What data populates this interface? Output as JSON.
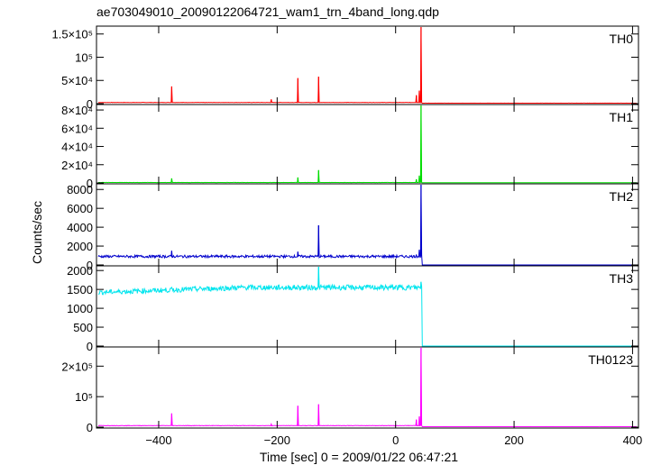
{
  "chart_data": {
    "type": "line",
    "title": "ae703049010_20090122064721_wam1_trn_4band_long.qdp",
    "xlabel": "Time [sec] 0 = 2009/01/22 06:47:21",
    "ylabel": "Counts/sec",
    "xlim": [
      -505,
      410
    ],
    "x_ticks": [
      {
        "v": -400,
        "label": "−400"
      },
      {
        "v": -200,
        "label": "−200"
      },
      {
        "v": 0,
        "label": "0"
      },
      {
        "v": 200,
        "label": "200"
      },
      {
        "v": 400,
        "label": "400"
      }
    ],
    "panels": [
      {
        "name": "TH0",
        "color": "#ff0000",
        "ylim": [
          0,
          165000
        ],
        "yticks": [
          {
            "v": 0,
            "label": "0"
          },
          {
            "v": 50000,
            "label": "5×10⁴"
          },
          {
            "v": 100000,
            "label": "10⁵"
          },
          {
            "v": 150000,
            "label": "1.5×10⁵"
          }
        ],
        "baseline_pre": 2500,
        "baseline_post": 1000,
        "spikes": [
          [
            -378,
            37000
          ],
          [
            -210,
            9000
          ],
          [
            -165,
            55000
          ],
          [
            -130,
            58000
          ],
          [
            35,
            18000
          ],
          [
            40,
            28000
          ],
          [
            43,
            165000
          ]
        ]
      },
      {
        "name": "TH1",
        "color": "#00dd00",
        "ylim": [
          0,
          85000
        ],
        "yticks": [
          {
            "v": 0,
            "label": "0"
          },
          {
            "v": 20000,
            "label": "2×10⁴"
          },
          {
            "v": 40000,
            "label": "4×10⁴"
          },
          {
            "v": 60000,
            "label": "6×10⁴"
          },
          {
            "v": 80000,
            "label": "8×10⁴"
          }
        ],
        "baseline_pre": 500,
        "baseline_post": 300,
        "spikes": [
          [
            -378,
            5000
          ],
          [
            -165,
            6000
          ],
          [
            -130,
            14000
          ],
          [
            35,
            4000
          ],
          [
            40,
            8000
          ],
          [
            43,
            85000
          ]
        ]
      },
      {
        "name": "TH2",
        "color": "#0000cc",
        "ylim": [
          0,
          8500
        ],
        "yticks": [
          {
            "v": 0,
            "label": "0"
          },
          {
            "v": 2000,
            "label": "2000"
          },
          {
            "v": 4000,
            "label": "4000"
          },
          {
            "v": 6000,
            "label": "6000"
          },
          {
            "v": 8000,
            "label": "8000"
          }
        ],
        "baseline_pre": 900,
        "baseline_post": 0,
        "spikes": [
          [
            -378,
            1500
          ],
          [
            -165,
            1400
          ],
          [
            -130,
            4200
          ],
          [
            35,
            1100
          ],
          [
            40,
            1600
          ],
          [
            43,
            8500
          ]
        ]
      },
      {
        "name": "TH3",
        "color": "#00e5ee",
        "ylim": [
          0,
          2100
        ],
        "yticks": [
          {
            "v": 0,
            "label": "0"
          },
          {
            "v": 500,
            "label": "500"
          },
          {
            "v": 1000,
            "label": "1000"
          },
          {
            "v": 1500,
            "label": "1500"
          },
          {
            "v": 2000,
            "label": "2000"
          }
        ],
        "baseline_pre": 1550,
        "baseline_post": 0,
        "spikes": [
          [
            -130,
            2100
          ],
          [
            43,
            1700
          ]
        ]
      },
      {
        "name": "TH0123",
        "color": "#ff00ff",
        "ylim": [
          0,
          260000
        ],
        "yticks": [
          {
            "v": 0,
            "label": "0"
          },
          {
            "v": 100000,
            "label": "10⁵"
          },
          {
            "v": 200000,
            "label": "2×10⁵"
          }
        ],
        "baseline_pre": 5000,
        "baseline_post": 1500,
        "spikes": [
          [
            -378,
            45000
          ],
          [
            -210,
            10000
          ],
          [
            -165,
            70000
          ],
          [
            -130,
            75000
          ],
          [
            35,
            25000
          ],
          [
            40,
            35000
          ],
          [
            43,
            260000
          ]
        ]
      }
    ]
  }
}
